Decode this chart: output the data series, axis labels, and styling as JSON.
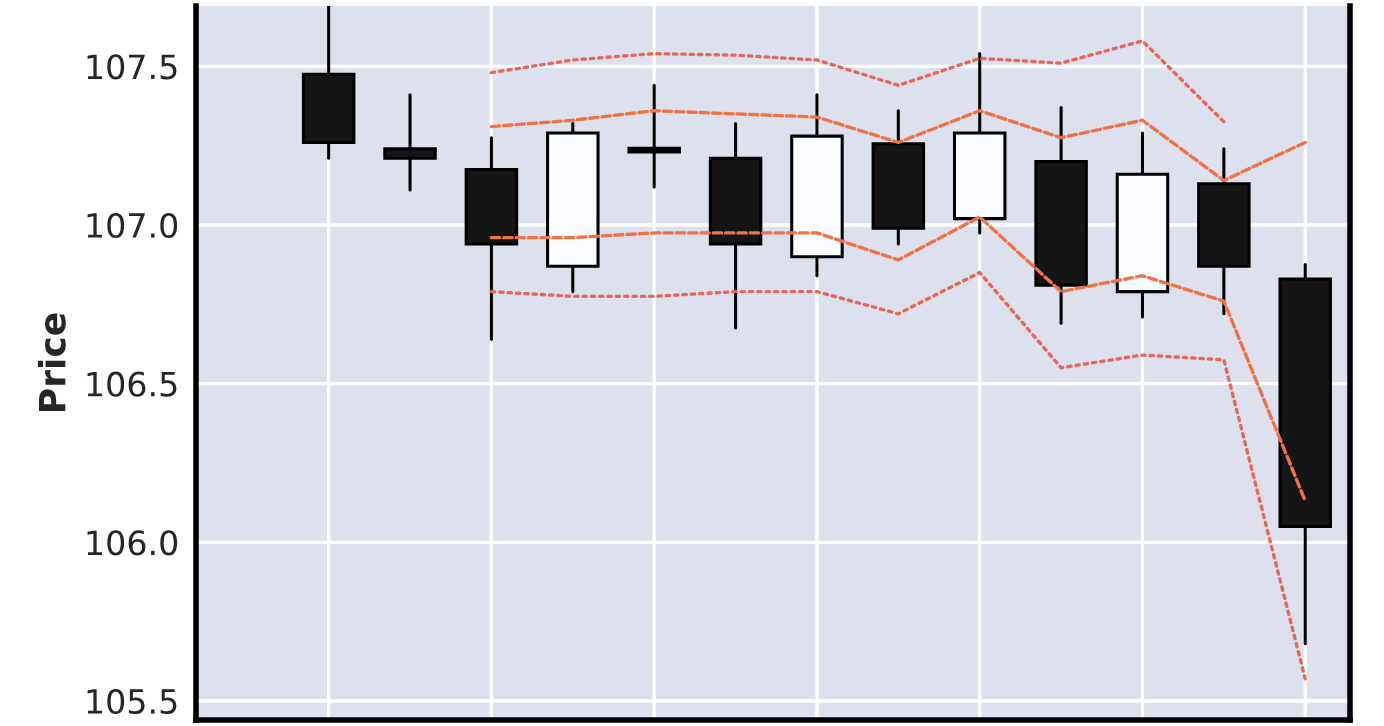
{
  "chart_data": {
    "type": "candlestick",
    "ylabel": "Price",
    "categories": [
      null,
      null,
      null,
      null,
      null,
      null,
      null,
      null,
      null,
      null,
      null,
      null,
      null
    ],
    "ohlc": [
      [
        107.475,
        107.69,
        107.21,
        107.26
      ],
      [
        107.24,
        107.41,
        107.11,
        107.21
      ],
      [
        107.175,
        107.275,
        106.64,
        106.94
      ],
      [
        106.87,
        107.32,
        106.79,
        107.29
      ],
      [
        107.24,
        107.44,
        107.12,
        107.23
      ],
      [
        107.21,
        107.32,
        106.675,
        106.94
      ],
      [
        106.9,
        107.41,
        106.84,
        107.28
      ],
      [
        107.256,
        107.36,
        106.94,
        106.99
      ],
      [
        107.02,
        107.54,
        106.975,
        107.29
      ],
      [
        107.2,
        107.37,
        106.69,
        106.81
      ],
      [
        106.79,
        107.29,
        106.71,
        107.16
      ],
      [
        107.13,
        107.24,
        106.72,
        106.87
      ],
      [
        106.83,
        106.875,
        105.68,
        106.05
      ]
    ],
    "series": [
      {
        "type": "line",
        "line_style": "dotted",
        "color": "#e8665a",
        "values": [
          null,
          null,
          107.48,
          107.52,
          107.54,
          107.535,
          107.52,
          107.44,
          107.525,
          107.51,
          107.58,
          107.325,
          null
        ]
      },
      {
        "type": "line",
        "line_style": "dashed",
        "color": "#f07245",
        "values": [
          null,
          null,
          107.31,
          107.33,
          107.36,
          107.35,
          107.34,
          107.26,
          107.36,
          107.275,
          107.33,
          107.14,
          107.26
        ]
      },
      {
        "type": "line",
        "line_style": "dashed",
        "color": "#f07245",
        "values": [
          null,
          null,
          106.96,
          106.96,
          106.975,
          106.975,
          106.975,
          106.89,
          107.025,
          106.79,
          106.84,
          106.76,
          106.13
        ]
      },
      {
        "type": "line",
        "line_style": "dotted",
        "color": "#e8665a",
        "values": [
          null,
          null,
          106.79,
          106.775,
          106.775,
          106.79,
          106.79,
          106.72,
          106.85,
          106.55,
          106.59,
          106.575,
          105.57
        ]
      }
    ],
    "ylim": [
      105.44,
      107.69
    ],
    "yticks": [
      105.5,
      {
        "value": 106.0,
        "label": "106.0"
      },
      106.5,
      {
        "value": 107.0,
        "label": "107.0"
      },
      107.5
    ],
    "grid": true,
    "legend": false,
    "marker": "none",
    "tick_labels": "y"
  }
}
